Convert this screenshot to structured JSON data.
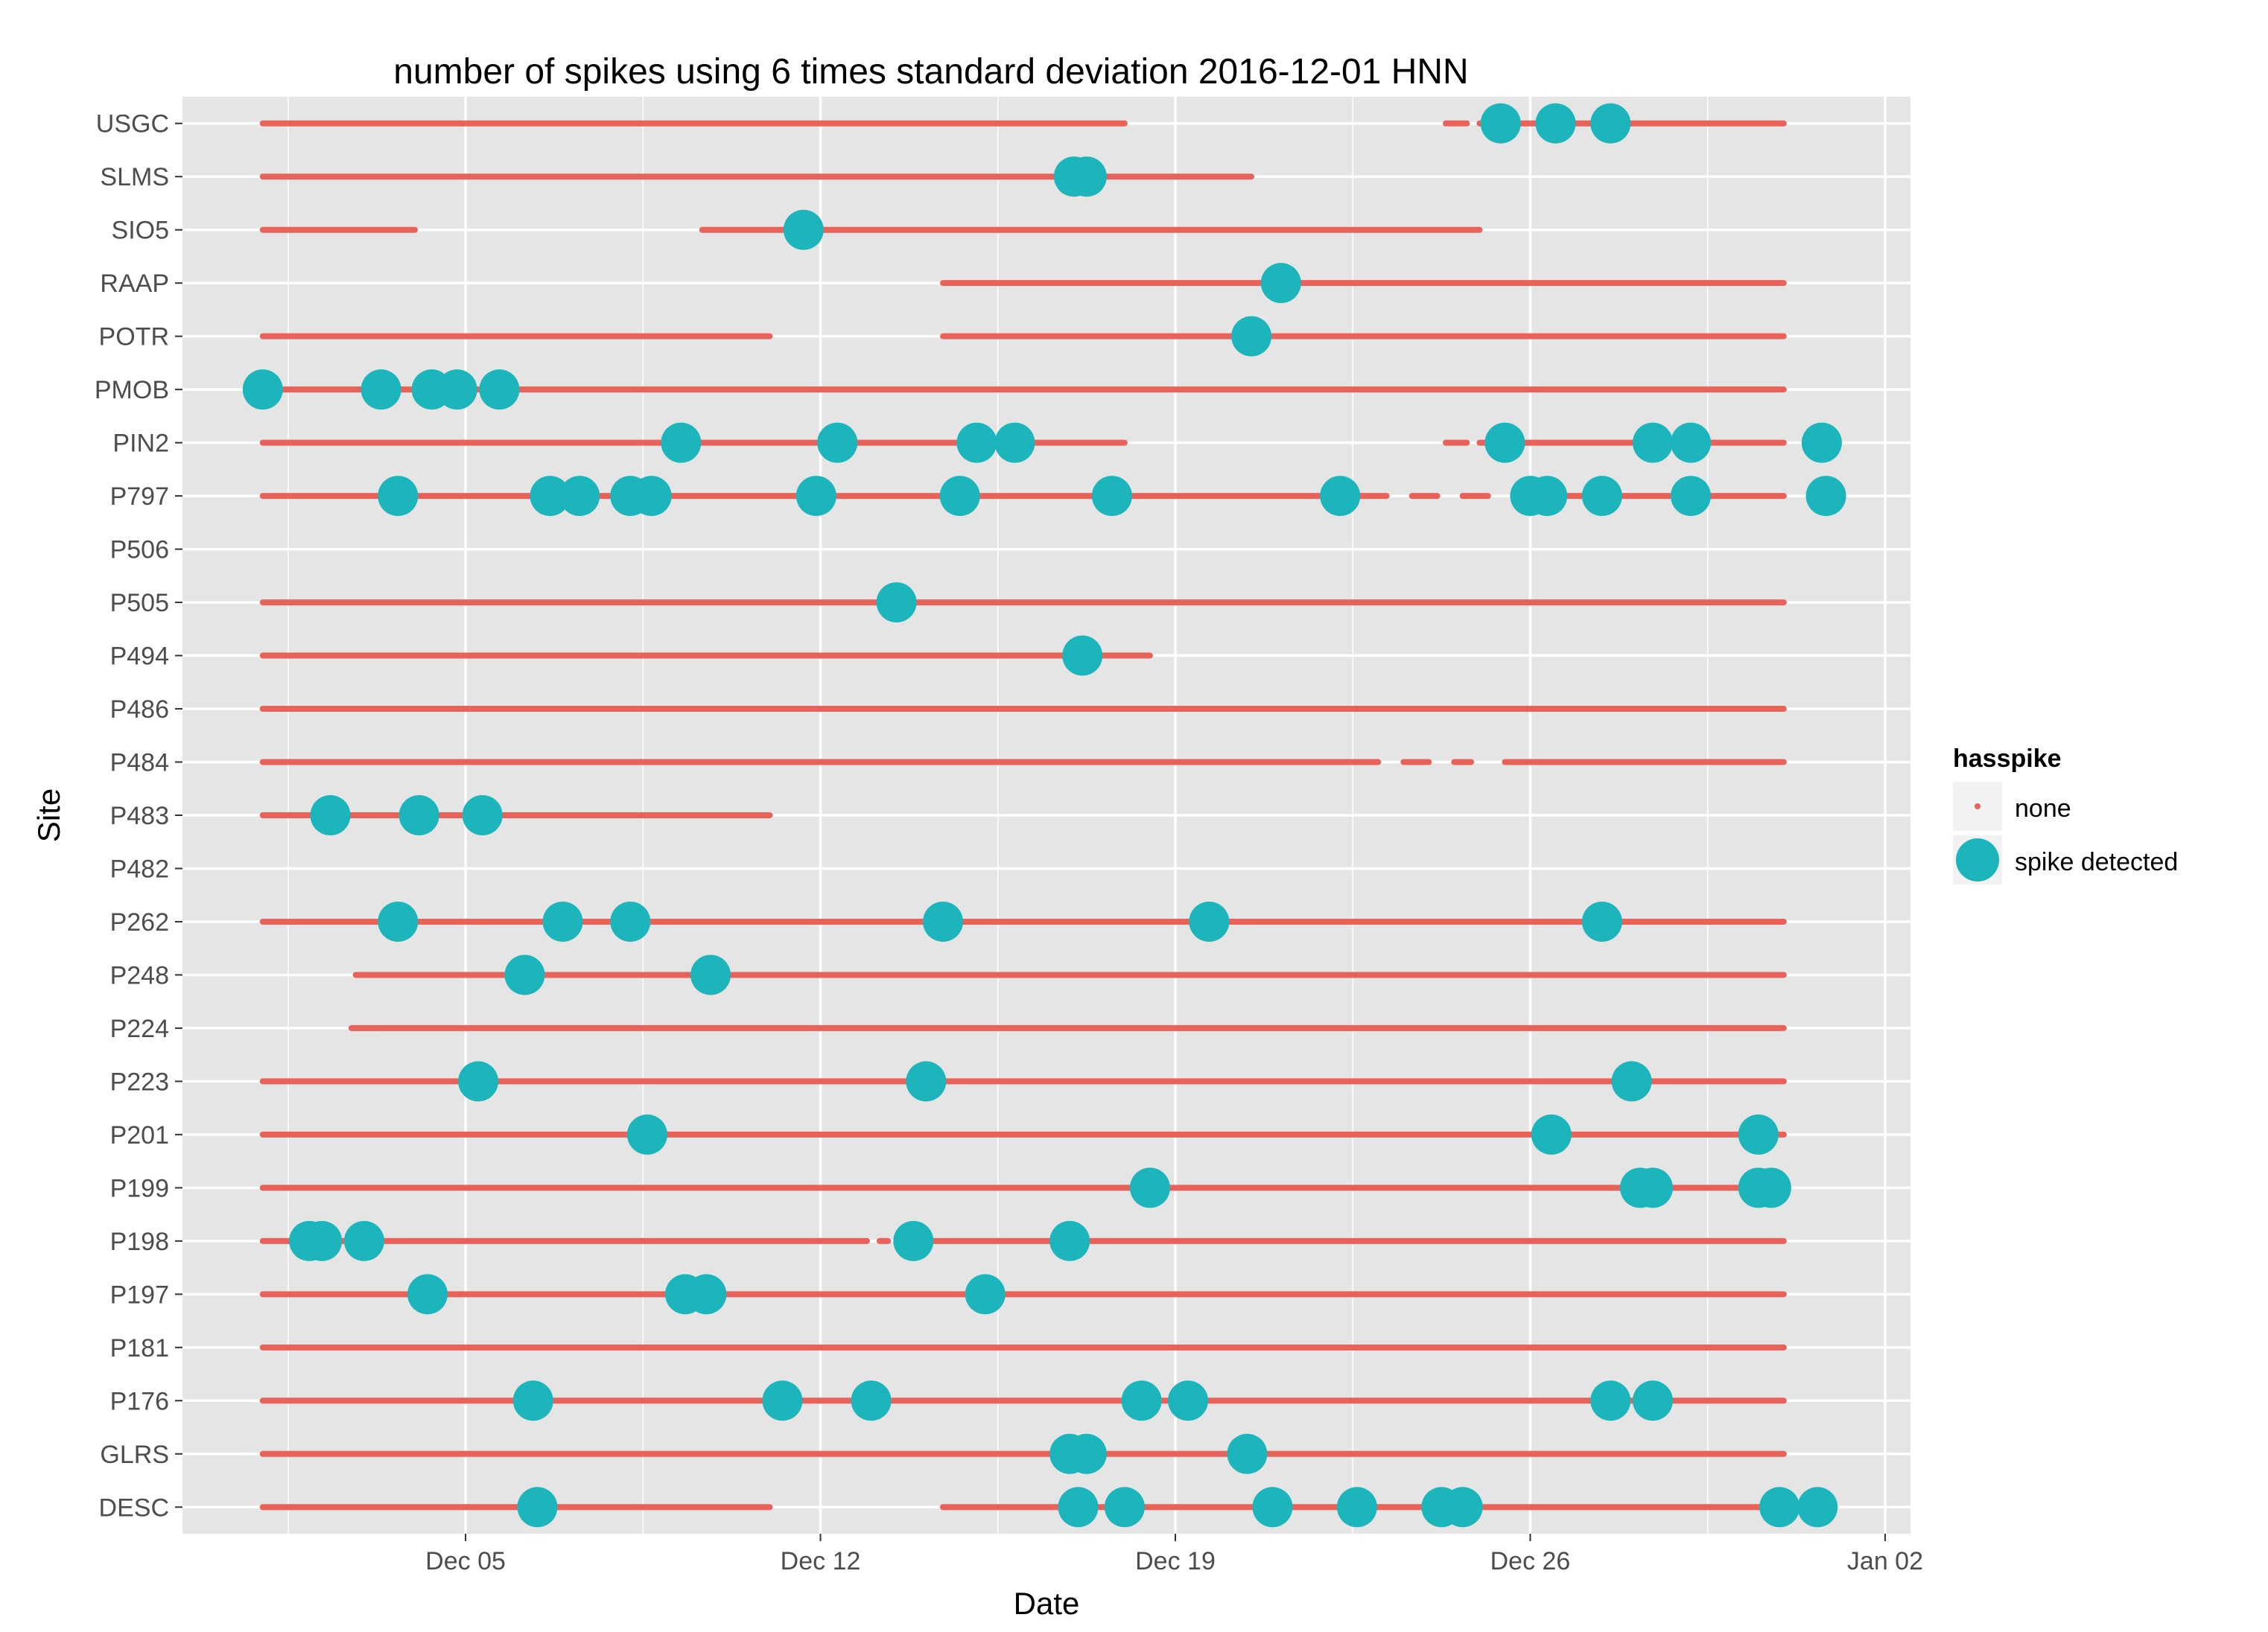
{
  "chart_data": {
    "type": "scatter",
    "title": "number of spikes using  6 times standard deviation 2016-12-01 HNN",
    "xlabel": "Date",
    "ylabel": "Site",
    "x_ticks": [
      "Dec 05",
      "Dec 12",
      "Dec 19",
      "Dec 26",
      "Jan 02"
    ],
    "x_tick_dates": [
      "2016-12-05",
      "2016-12-12",
      "2016-12-19",
      "2016-12-26",
      "2017-01-02"
    ],
    "xlim": [
      "2016-11-29T10:00",
      "2017-01-02T12:00"
    ],
    "grid": true,
    "legend": {
      "title": "hasspike",
      "placement": "right",
      "entries": [
        {
          "label": "none",
          "color": "#F8766D"
        },
        {
          "label": "spike detected",
          "color": "#00BFC4"
        }
      ]
    },
    "colors": {
      "none": "#E8625A",
      "spike": "#1CB5BB",
      "panel": "#E5E5E5",
      "grid": "#FFFFFF"
    },
    "sites": [
      "USGC",
      "SLMS",
      "SIO5",
      "RAAP",
      "POTR",
      "PMOB",
      "PIN2",
      "P797",
      "P506",
      "P505",
      "P494",
      "P486",
      "P484",
      "P483",
      "P482",
      "P262",
      "P248",
      "P224",
      "P223",
      "P201",
      "P199",
      "P198",
      "P197",
      "P181",
      "P176",
      "GLRS",
      "DESC"
    ],
    "series": [
      {
        "name": "none",
        "lines": [
          {
            "site": "USGC",
            "segments": [
              [
                "2016-12-01",
                "2016-12-18"
              ],
              [
                "2016-12-24T08",
                "2016-12-24T18"
              ],
              [
                "2016-12-25",
                "2016-12-31"
              ]
            ]
          },
          {
            "site": "SLMS",
            "segments": [
              [
                "2016-12-01",
                "2016-12-20T12"
              ]
            ]
          },
          {
            "site": "SIO5",
            "segments": [
              [
                "2016-12-01",
                "2016-12-04"
              ],
              [
                "2016-12-09T16",
                "2016-12-25"
              ]
            ]
          },
          {
            "site": "RAAP",
            "segments": [
              [
                "2016-12-14T10",
                "2016-12-31"
              ]
            ]
          },
          {
            "site": "POTR",
            "segments": [
              [
                "2016-12-01",
                "2016-12-11"
              ],
              [
                "2016-12-14T10",
                "2016-12-31"
              ]
            ]
          },
          {
            "site": "PMOB",
            "segments": [
              [
                "2016-12-01",
                "2016-12-31"
              ]
            ]
          },
          {
            "site": "PIN2",
            "segments": [
              [
                "2016-12-01",
                "2016-12-18"
              ],
              [
                "2016-12-24T08",
                "2016-12-24T18"
              ],
              [
                "2016-12-25",
                "2016-12-31"
              ]
            ]
          },
          {
            "site": "P797",
            "segments": [
              [
                "2016-12-01",
                "2016-12-23T04"
              ],
              [
                "2016-12-23T16",
                "2016-12-24T04"
              ],
              [
                "2016-12-24T16",
                "2016-12-25T04"
              ],
              [
                "2016-12-25T20",
                "2016-12-31"
              ]
            ]
          },
          {
            "site": "P505",
            "segments": [
              [
                "2016-12-01",
                "2016-12-31"
              ]
            ]
          },
          {
            "site": "P494",
            "segments": [
              [
                "2016-12-01",
                "2016-12-18T12"
              ]
            ]
          },
          {
            "site": "P486",
            "segments": [
              [
                "2016-12-01",
                "2016-12-31"
              ]
            ]
          },
          {
            "site": "P484",
            "segments": [
              [
                "2016-12-01",
                "2016-12-23T00"
              ],
              [
                "2016-12-23T12",
                "2016-12-24T00"
              ],
              [
                "2016-12-24T12",
                "2016-12-24T20"
              ],
              [
                "2016-12-25T12",
                "2016-12-31"
              ]
            ]
          },
          {
            "site": "P483",
            "segments": [
              [
                "2016-12-01",
                "2016-12-11"
              ]
            ]
          },
          {
            "site": "P262",
            "segments": [
              [
                "2016-12-01",
                "2016-12-31"
              ]
            ]
          },
          {
            "site": "P248",
            "segments": [
              [
                "2016-12-02T20",
                "2016-12-31"
              ]
            ]
          },
          {
            "site": "P224",
            "segments": [
              [
                "2016-12-02T18",
                "2016-12-31"
              ]
            ]
          },
          {
            "site": "P223",
            "segments": [
              [
                "2016-12-01",
                "2016-12-31"
              ]
            ]
          },
          {
            "site": "P201",
            "segments": [
              [
                "2016-12-01",
                "2016-12-31"
              ]
            ]
          },
          {
            "site": "P199",
            "segments": [
              [
                "2016-12-01",
                "2016-12-31"
              ]
            ]
          },
          {
            "site": "P198",
            "segments": [
              [
                "2016-12-01",
                "2016-12-12T22"
              ],
              [
                "2016-12-13T04",
                "2016-12-13T08"
              ],
              [
                "2016-12-13T16",
                "2016-12-31"
              ]
            ]
          },
          {
            "site": "P197",
            "segments": [
              [
                "2016-12-01",
                "2016-12-31"
              ]
            ]
          },
          {
            "site": "P181",
            "segments": [
              [
                "2016-12-01",
                "2016-12-31"
              ]
            ]
          },
          {
            "site": "P176",
            "segments": [
              [
                "2016-12-01",
                "2016-12-31"
              ]
            ]
          },
          {
            "site": "GLRS",
            "segments": [
              [
                "2016-12-01",
                "2016-12-31"
              ]
            ]
          },
          {
            "site": "DESC",
            "segments": [
              [
                "2016-12-01",
                "2016-12-11"
              ],
              [
                "2016-12-14T10",
                "2016-12-31"
              ]
            ]
          }
        ]
      },
      {
        "name": "spike detected",
        "points": [
          {
            "site": "USGC",
            "dates": [
              "2016-12-25T10",
              "2016-12-26T12",
              "2016-12-27T14"
            ]
          },
          {
            "site": "SLMS",
            "dates": [
              "2016-12-17T00",
              "2016-12-17T06"
            ]
          },
          {
            "site": "SIO5",
            "dates": [
              "2016-12-11T16"
            ]
          },
          {
            "site": "RAAP",
            "dates": [
              "2016-12-21T02"
            ]
          },
          {
            "site": "POTR",
            "dates": [
              "2016-12-20T12"
            ]
          },
          {
            "site": "PMOB",
            "dates": [
              "2016-12-01T00",
              "2016-12-03T08",
              "2016-12-04T08",
              "2016-12-04T20",
              "2016-12-05T16"
            ]
          },
          {
            "site": "PIN2",
            "dates": [
              "2016-12-09T06",
              "2016-12-12T08",
              "2016-12-15T02",
              "2016-12-15T20",
              "2016-12-25T12",
              "2016-12-28T10",
              "2016-12-29T04",
              "2016-12-31T18"
            ]
          },
          {
            "site": "P797",
            "dates": [
              "2016-12-03T16",
              "2016-12-06T16",
              "2016-12-07T06",
              "2016-12-08T06",
              "2016-12-08T16",
              "2016-12-11T22",
              "2016-12-14T18",
              "2016-12-17T18",
              "2016-12-22T06",
              "2016-12-26T00",
              "2016-12-26T08",
              "2016-12-27T10",
              "2016-12-29T04",
              "2016-12-31T20"
            ]
          },
          {
            "site": "P505",
            "dates": [
              "2016-12-13T12"
            ]
          },
          {
            "site": "P494",
            "dates": [
              "2016-12-17T04"
            ]
          },
          {
            "site": "P483",
            "dates": [
              "2016-12-02T08",
              "2016-12-04T02",
              "2016-12-05T08"
            ]
          },
          {
            "site": "P262",
            "dates": [
              "2016-12-03T16",
              "2016-12-06T22",
              "2016-12-08T06",
              "2016-12-14T10",
              "2016-12-19T16",
              "2016-12-27T10"
            ]
          },
          {
            "site": "P248",
            "dates": [
              "2016-12-06T04",
              "2016-12-09T20"
            ]
          },
          {
            "site": "P223",
            "dates": [
              "2016-12-05T06",
              "2016-12-14T02",
              "2016-12-28T00"
            ]
          },
          {
            "site": "P201",
            "dates": [
              "2016-12-08T14",
              "2016-12-26T10",
              "2016-12-30T12"
            ]
          },
          {
            "site": "P199",
            "dates": [
              "2016-12-18T12",
              "2016-12-28T04",
              "2016-12-28T10",
              "2016-12-30T12",
              "2016-12-30T18"
            ]
          },
          {
            "site": "P198",
            "dates": [
              "2016-12-01T22",
              "2016-12-02T04",
              "2016-12-03T00",
              "2016-12-13T20",
              "2016-12-16T22"
            ]
          },
          {
            "site": "P197",
            "dates": [
              "2016-12-04T06",
              "2016-12-09T08",
              "2016-12-09T18",
              "2016-12-15T06"
            ]
          },
          {
            "site": "P176",
            "dates": [
              "2016-12-06T08",
              "2016-12-11T06",
              "2016-12-13T00",
              "2016-12-18T08",
              "2016-12-19T06",
              "2016-12-27T14",
              "2016-12-28T10"
            ]
          },
          {
            "site": "GLRS",
            "dates": [
              "2016-12-16T22",
              "2016-12-17T06",
              "2016-12-20T10"
            ]
          },
          {
            "site": "DESC",
            "dates": [
              "2016-12-06T10",
              "2016-12-17T02",
              "2016-12-18T00",
              "2016-12-20T22",
              "2016-12-22T14",
              "2016-12-24T06",
              "2016-12-24T16",
              "2016-12-30T22",
              "2016-12-31T16"
            ]
          }
        ]
      }
    ]
  }
}
